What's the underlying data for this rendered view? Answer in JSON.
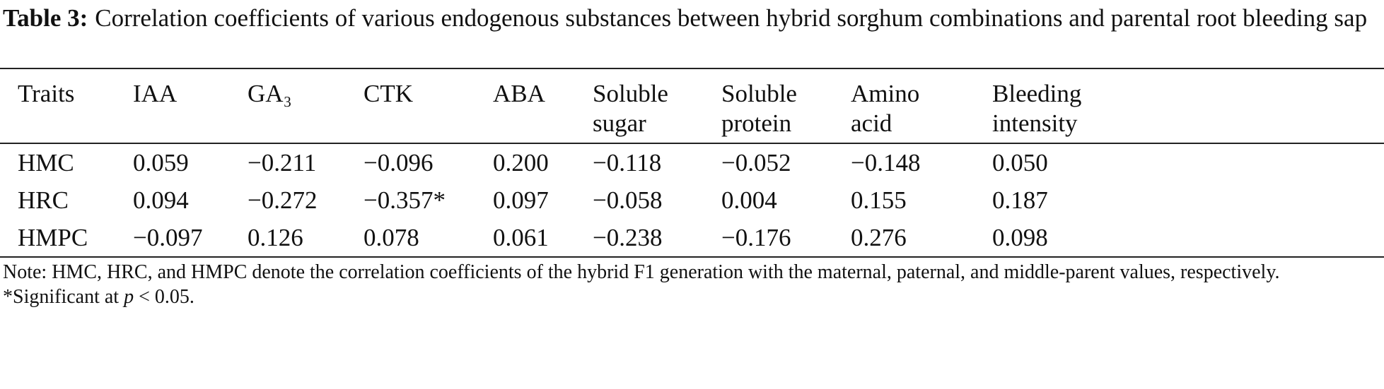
{
  "caption": {
    "label": "Table 3:",
    "text": "Correlation coefficients of various endogenous substances between hybrid sorghum combinations and parental root bleeding sap"
  },
  "table": {
    "header": [
      [
        "Traits"
      ],
      [
        "IAA"
      ],
      [
        "GA₃"
      ],
      [
        "CTK"
      ],
      [
        "ABA"
      ],
      [
        "Soluble",
        "sugar"
      ],
      [
        "Soluble",
        "protein"
      ],
      [
        "Amino",
        "acid"
      ],
      [
        "Bleeding",
        "intensity"
      ]
    ],
    "rows": [
      [
        "HMC",
        "0.059",
        "−0.211",
        "−0.096",
        "0.200",
        "−0.118",
        "−0.052",
        "−0.148",
        "0.050"
      ],
      [
        "HRC",
        "0.094",
        "−0.272",
        "−0.357*",
        "0.097",
        "−0.058",
        "0.004",
        "0.155",
        "0.187"
      ],
      [
        "HMPC",
        "−0.097",
        "0.126",
        "0.078",
        "0.061",
        "−0.238",
        "−0.176",
        "0.276",
        "0.098"
      ]
    ]
  },
  "note": {
    "text": "Note: HMC, HRC, and HMPC denote the correlation coefficients of the hybrid F1 generation with the maternal, paternal, and middle-parent values, respectively. *Significant at ",
    "italic": "p",
    "tail": " < 0.05."
  }
}
